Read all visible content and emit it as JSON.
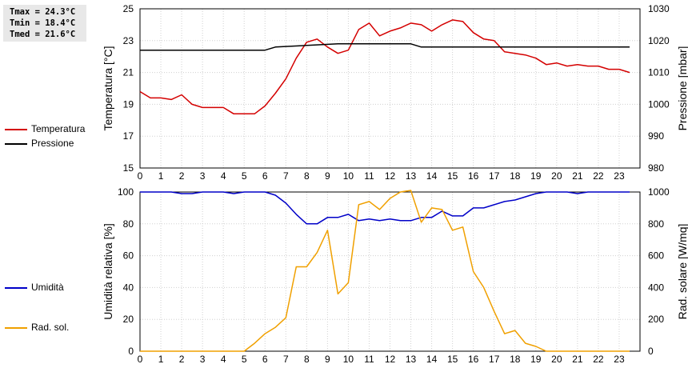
{
  "stats": {
    "tmax": "Tmax = 24.3°C",
    "tmin": "Tmin = 18.4°C",
    "tmed": "Tmed = 21.6°C"
  },
  "chart_data": [
    {
      "type": "line",
      "x_ticks": [
        "0",
        "1",
        "2",
        "3",
        "4",
        "5",
        "6",
        "7",
        "8",
        "9",
        "10",
        "11",
        "12",
        "13",
        "14",
        "15",
        "16",
        "17",
        "18",
        "19",
        "20",
        "21",
        "22",
        "23"
      ],
      "xlim": [
        0,
        24
      ],
      "ylabel_left": "Temperatura [°C]",
      "ylabel_right": "Pressione [mbar]",
      "ylim_left": [
        15,
        25
      ],
      "ylim_right": [
        980,
        1030
      ],
      "yticks_left": [
        "15",
        "17",
        "19",
        "21",
        "23",
        "25"
      ],
      "yticks_right": [
        "980",
        "990",
        "1000",
        "1010",
        "1020",
        "1030"
      ],
      "grid": true,
      "legend_position": "left",
      "series": [
        {
          "name": "Temperatura",
          "axis": "left",
          "color": "#d40000",
          "x": [
            0,
            0.5,
            1,
            1.5,
            2,
            2.5,
            3,
            3.5,
            4,
            4.5,
            5,
            5.5,
            6,
            6.5,
            7,
            7.5,
            8,
            8.5,
            9,
            9.5,
            10,
            10.5,
            11,
            11.5,
            12,
            12.5,
            13,
            13.5,
            14,
            14.5,
            15,
            15.5,
            16,
            16.5,
            17,
            17.5,
            18,
            18.5,
            19,
            19.5,
            20,
            20.5,
            21,
            21.5,
            22,
            22.5,
            23,
            23.5
          ],
          "values": [
            19.8,
            19.4,
            19.4,
            19.3,
            19.6,
            19.0,
            18.8,
            18.8,
            18.8,
            18.4,
            18.4,
            18.4,
            18.9,
            19.7,
            20.6,
            21.9,
            22.9,
            23.1,
            22.6,
            22.2,
            22.4,
            23.7,
            24.1,
            23.3,
            23.6,
            23.8,
            24.1,
            24.0,
            23.6,
            24.0,
            24.3,
            24.2,
            23.5,
            23.1,
            23.0,
            22.3,
            22.2,
            22.1,
            21.9,
            21.5,
            21.6,
            21.4,
            21.5,
            21.4,
            21.4,
            21.2,
            21.2,
            21.0
          ]
        },
        {
          "name": "Pressione",
          "axis": "right",
          "color": "#000000",
          "x": [
            0,
            6,
            6.5,
            9.5,
            13,
            13.5,
            23.5
          ],
          "values": [
            1017,
            1017,
            1018,
            1019,
            1019,
            1018,
            1018
          ]
        }
      ]
    },
    {
      "type": "line",
      "x_ticks": [
        "0",
        "1",
        "2",
        "3",
        "4",
        "5",
        "6",
        "7",
        "8",
        "9",
        "10",
        "11",
        "12",
        "13",
        "14",
        "15",
        "16",
        "17",
        "18",
        "19",
        "20",
        "21",
        "22",
        "23"
      ],
      "xlim": [
        0,
        24
      ],
      "ylabel_left": "Umidità relativa [%]",
      "ylabel_right": "Rad. solare [W/mq]",
      "ylim_left": [
        0,
        100
      ],
      "ylim_right": [
        0,
        1000
      ],
      "yticks_left": [
        "0",
        "20",
        "40",
        "60",
        "80",
        "100"
      ],
      "yticks_right": [
        "0",
        "200",
        "400",
        "600",
        "800",
        "1000"
      ],
      "grid": true,
      "legend_position": "left",
      "series": [
        {
          "name": "Umidità",
          "axis": "left",
          "color": "#0000c8",
          "x": [
            0,
            1.5,
            2,
            2.5,
            3,
            4,
            4.5,
            5,
            6,
            6.5,
            7,
            7.5,
            8,
            8.5,
            9,
            9.5,
            10,
            10.5,
            11,
            11.5,
            12,
            12.5,
            13,
            13.5,
            14,
            14.5,
            15,
            15.5,
            16,
            16.5,
            17,
            17.5,
            18,
            18.5,
            19,
            19.5,
            20,
            20.5,
            21,
            21.5,
            22,
            23.5
          ],
          "values": [
            100,
            100,
            99,
            99,
            100,
            100,
            99,
            100,
            100,
            98,
            93,
            86,
            80,
            80,
            84,
            84,
            86,
            82,
            83,
            82,
            83,
            82,
            82,
            84,
            84,
            88,
            85,
            85,
            90,
            90,
            92,
            94,
            95,
            97,
            99,
            100,
            100,
            100,
            99,
            100,
            100,
            100
          ]
        },
        {
          "name": "Rad. sol.",
          "axis": "right",
          "color": "#f0a000",
          "x": [
            0,
            5,
            5.5,
            6,
            6.5,
            7,
            7.5,
            8,
            8.5,
            9,
            9.5,
            10,
            10.5,
            11,
            11.5,
            12,
            12.5,
            13,
            13.5,
            14,
            14.5,
            15,
            15.5,
            16,
            16.5,
            17,
            17.5,
            18,
            18.5,
            19,
            19.5,
            20,
            23.5
          ],
          "values": [
            0,
            0,
            50,
            110,
            150,
            210,
            530,
            530,
            620,
            760,
            360,
            430,
            920,
            940,
            890,
            960,
            1000,
            1010,
            810,
            900,
            890,
            760,
            780,
            500,
            400,
            250,
            110,
            130,
            50,
            30,
            0,
            0,
            0
          ]
        }
      ]
    }
  ]
}
